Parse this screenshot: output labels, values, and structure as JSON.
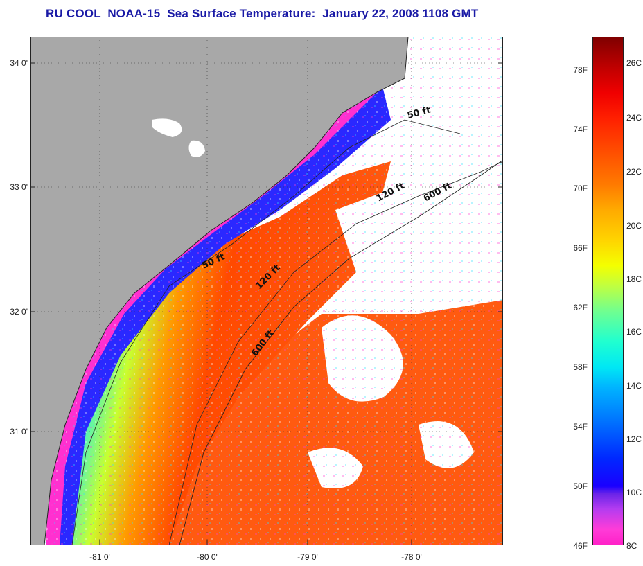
{
  "title": "RU COOL  NOAA-15  Sea Surface Temperature:  January 22, 2008 1108 GMT",
  "map": {
    "latitude_labels": [
      "34 0'",
      "33 0'",
      "32 0'",
      "31 0'"
    ],
    "longitude_labels": [
      "-81 0'",
      "-80 0'",
      "-79 0'",
      "-78 0'"
    ],
    "contour_labels": [
      "50 ft",
      "120 ft",
      "600 ft",
      "50 ft",
      "120 ft",
      "600 ft"
    ],
    "land_color": "#a8a8a8",
    "cloud_color": "#ffffff"
  },
  "colorbar": {
    "fahrenheit_labels": [
      "78F",
      "74F",
      "70F",
      "66F",
      "62F",
      "58F",
      "54F",
      "50F",
      "46F"
    ],
    "celsius_labels": [
      "26C",
      "24C",
      "22C",
      "20C",
      "18C",
      "16C",
      "14C",
      "12C",
      "10C",
      "8C"
    ]
  }
}
